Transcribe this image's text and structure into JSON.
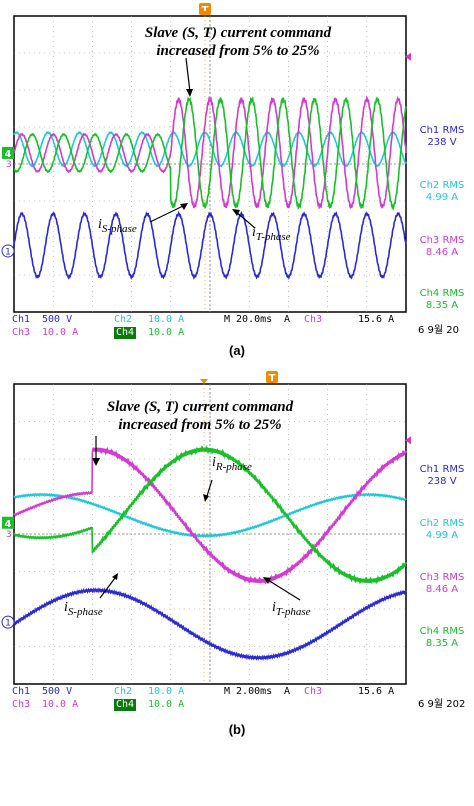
{
  "colors": {
    "ch1": "#2a2ad0",
    "ch2": "#1fc8d8",
    "ch3": "#d23ad2",
    "ch4": "#18c028",
    "trigger": "#f08a00",
    "grid": "#9a9a9a",
    "screen_bg": "#ffffff",
    "frame": "#000000"
  },
  "panels": [
    {
      "caption": "(a)",
      "annotation_line1": "Slave (S, T) current command",
      "annotation_line2": "increased from 5% to 25%",
      "wave_labels": [
        {
          "main": "i",
          "sub": "S-phase"
        },
        {
          "main": "i",
          "sub": "T-phase"
        }
      ],
      "stats": [
        {
          "name": "Ch1 RMS",
          "value": "238 V"
        },
        {
          "name": "Ch2 RMS",
          "value": "4.99 A"
        },
        {
          "name": "Ch3 RMS",
          "value": "8.46 A"
        },
        {
          "name": "Ch4 RMS",
          "value": "8.35 A"
        }
      ],
      "status": {
        "ch1_label": "Ch1",
        "ch1_scale": "500 V",
        "ch2_label": "Ch2",
        "ch2_scale": "10.0 A",
        "ch3_label": "Ch3",
        "ch3_scale": "10.0 A",
        "ch4_label": "Ch4",
        "ch4_scale": "10.0 A",
        "timebase": "M 20.0ms",
        "trig_unit": "A",
        "trig_ch": "Ch3",
        "trig_level": "15.6 A",
        "coupling_icon": "ac-coupling-icon"
      },
      "date": "6 9월 20",
      "marker_ch1": "1",
      "marker_ch4": "4",
      "marker_ch3": "3",
      "trigger_marker": "T"
    },
    {
      "caption": "(b)",
      "annotation_line1": "Slave (S, T) current command",
      "annotation_line2": "increased from 5% to 25%",
      "wave_labels": [
        {
          "main": "i",
          "sub": "R-phase"
        },
        {
          "main": "i",
          "sub": "S-phase"
        },
        {
          "main": "i",
          "sub": "T-phase"
        }
      ],
      "stats": [
        {
          "name": "Ch1 RMS",
          "value": "238 V"
        },
        {
          "name": "Ch2 RMS",
          "value": "4.99 A"
        },
        {
          "name": "Ch3 RMS",
          "value": "8.46 A"
        },
        {
          "name": "Ch4 RMS",
          "value": "8.35 A"
        }
      ],
      "status": {
        "ch1_label": "Ch1",
        "ch1_scale": "500 V",
        "ch2_label": "Ch2",
        "ch2_scale": "10.0 A",
        "ch3_label": "Ch3",
        "ch3_scale": "10.0 A",
        "ch4_label": "Ch4",
        "ch4_scale": "10.0 A",
        "timebase": "M 2.00ms",
        "trig_unit": "A",
        "trig_ch": "Ch3",
        "trig_level": "15.6 A",
        "coupling_icon": "ac-coupling-icon"
      },
      "date": "6 9월 202",
      "marker_ch1": "1",
      "marker_ch4": "4",
      "marker_ch3": "3",
      "trigger_marker": "T"
    }
  ],
  "chart_data": [
    {
      "type": "line",
      "time_per_div_ms": 20,
      "divisions_x": 10,
      "divisions_y": 8,
      "step_time_div": 4.0,
      "series": [
        {
          "name": "Ch1",
          "kind": "sine",
          "cycles_across": 12.5,
          "amplitude_div": 0.85,
          "offset_div": -2.2
        },
        {
          "name": "Ch2",
          "kind": "sine",
          "cycles_across": 12.5,
          "amplitude_div_before": 0.45,
          "amplitude_div_after": 0.45,
          "offset_div": 0.4
        },
        {
          "name": "Ch3",
          "kind": "sine",
          "cycles_across": 12.5,
          "amplitude_div_before": 0.5,
          "amplitude_div_after": 1.45,
          "offset_div": 0.3
        },
        {
          "name": "Ch4",
          "kind": "sine",
          "cycles_across": 12.5,
          "amplitude_div_before": 0.5,
          "amplitude_div_after": 1.45,
          "offset_div": 0.3
        }
      ]
    },
    {
      "type": "line",
      "time_per_div_ms": 2,
      "divisions_x": 10,
      "divisions_y": 8,
      "step_time_div": 2.0,
      "series": [
        {
          "name": "Ch1",
          "kind": "sine",
          "cycles_across": 1.2,
          "amplitude_div": 0.9,
          "offset_div": -2.4
        },
        {
          "name": "Ch2",
          "kind": "sine",
          "cycles_across": 1.2,
          "amplitude_div": 0.55,
          "offset_div": 0.5
        },
        {
          "name": "Ch3",
          "kind": "sine",
          "cycles_across": 1.2,
          "amplitude_div_before": 0.6,
          "amplitude_div_after": 1.75,
          "offset_div": 0.5
        },
        {
          "name": "Ch4",
          "kind": "sine",
          "cycles_across": 1.2,
          "amplitude_div_before": 0.6,
          "amplitude_div_after": 1.75,
          "offset_div": 0.5
        }
      ]
    }
  ]
}
